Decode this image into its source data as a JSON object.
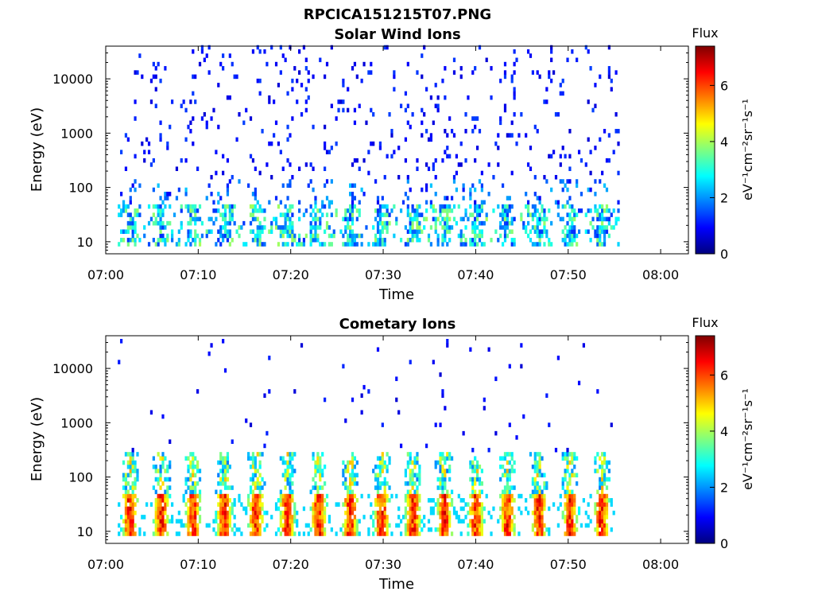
{
  "figure": {
    "filename": "RPCICA151215T07.PNG"
  },
  "colormap": {
    "name": "jet",
    "stops": [
      "#00007f",
      "#0000ff",
      "#007fff",
      "#00ffff",
      "#7fff7f",
      "#ffff00",
      "#ff7f00",
      "#ff0000",
      "#7f0000"
    ]
  },
  "chart_data": [
    {
      "type": "heatmap",
      "title": "Solar Wind Ions",
      "xlabel": "Time",
      "ylabel": "Energy (eV)",
      "x_ticks": [
        "07:00",
        "07:10",
        "07:20",
        "07:30",
        "07:40",
        "07:50",
        "08:00"
      ],
      "x_range_minutes": [
        0,
        63
      ],
      "data_x_range_minutes": [
        1.3,
        55.5
      ],
      "y_scale": "log",
      "y_ticks": [
        {
          "value": 10,
          "label": "10"
        },
        {
          "value": 100,
          "label": "100"
        },
        {
          "value": 1000,
          "label": "1000"
        },
        {
          "value": 10000,
          "label": "10000"
        }
      ],
      "y_range": [
        6,
        40000
      ],
      "colorbar": {
        "title": "Flux",
        "label": "eV⁻¹cm⁻²sr⁻¹s⁻¹",
        "range": [
          0,
          7.4
        ],
        "ticks": [
          "0",
          "2",
          "4",
          "6"
        ]
      },
      "description": "Sparse low-flux (~1) counts spread from 40 eV to 30 keV; moderate flux 2–4 concentrated near 15–40 eV in bursts"
    },
    {
      "type": "heatmap",
      "title": "Cometary Ions",
      "xlabel": "Time",
      "ylabel": "Energy (eV)",
      "x_ticks": [
        "07:00",
        "07:10",
        "07:20",
        "07:30",
        "07:40",
        "07:50",
        "08:00"
      ],
      "x_range_minutes": [
        0,
        63
      ],
      "data_x_range_minutes": [
        1.3,
        55.5
      ],
      "y_scale": "log",
      "y_ticks": [
        {
          "value": 10,
          "label": "10"
        },
        {
          "value": 100,
          "label": "100"
        },
        {
          "value": 1000,
          "label": "1000"
        },
        {
          "value": 10000,
          "label": "10000"
        }
      ],
      "y_range": [
        6,
        40000
      ],
      "colorbar": {
        "title": "Flux",
        "label": "eV⁻¹cm⁻²sr⁻¹s⁻¹",
        "range": [
          0,
          7.4
        ],
        "ticks": [
          "0",
          "2",
          "4",
          "6"
        ]
      },
      "description": "Periodic bursts (~3.4 min period) of high flux (5–7) at 15–40 eV with tails up to ~300 eV; sparse low flux above 1000 eV"
    }
  ]
}
